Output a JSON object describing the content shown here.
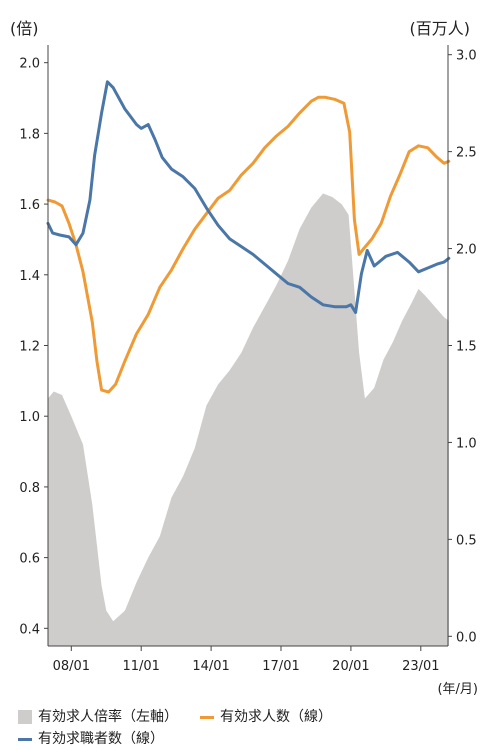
{
  "chart_data": {
    "type": "line",
    "left_unit": "(倍)",
    "right_unit": "(百万人)",
    "x_unit": "(年/月)",
    "x_ticks": [
      "08/01",
      "11/01",
      "14/01",
      "17/01",
      "20/01",
      "23/01"
    ],
    "x_range": [
      "2007/01",
      "2024/03"
    ],
    "y_left": {
      "min": 0.35,
      "max": 2.05,
      "ticks": [
        "0.4",
        "0.6",
        "0.8",
        "1.0",
        "1.2",
        "1.4",
        "1.6",
        "1.8",
        "2.0"
      ]
    },
    "y_right": {
      "min": -0.05,
      "max": 3.05,
      "ticks": [
        "0.0",
        "0.5",
        "1.0",
        "1.5",
        "2.0",
        "2.5",
        "3.0"
      ]
    },
    "series": [
      {
        "name": "有効求人倍率（左軸）",
        "kind": "area",
        "axis": "left",
        "color": "#cfcdcb",
        "x": [
          2007.0,
          2007.25,
          2007.6,
          2008.0,
          2008.5,
          2008.9,
          2009.3,
          2009.5,
          2009.8,
          2010.3,
          2010.8,
          2011.3,
          2011.8,
          2012.3,
          2012.8,
          2013.3,
          2013.8,
          2014.3,
          2014.8,
          2015.3,
          2015.8,
          2016.3,
          2016.8,
          2017.3,
          2017.8,
          2018.3,
          2018.8,
          2019.2,
          2019.6,
          2019.9,
          2020.1,
          2020.35,
          2020.6,
          2021.0,
          2021.4,
          2021.8,
          2022.2,
          2022.6,
          2022.9,
          2023.2,
          2023.6,
          2024.0,
          2024.2
        ],
        "y": [
          1.05,
          1.07,
          1.06,
          1.0,
          0.92,
          0.75,
          0.52,
          0.45,
          0.42,
          0.45,
          0.53,
          0.6,
          0.66,
          0.77,
          0.83,
          0.91,
          1.03,
          1.09,
          1.13,
          1.18,
          1.25,
          1.31,
          1.37,
          1.44,
          1.53,
          1.59,
          1.63,
          1.62,
          1.6,
          1.57,
          1.4,
          1.18,
          1.05,
          1.08,
          1.16,
          1.21,
          1.27,
          1.32,
          1.36,
          1.34,
          1.31,
          1.28,
          1.27
        ]
      },
      {
        "name": "有効求人数（線）",
        "kind": "line",
        "axis": "right",
        "color": "#ef9a34",
        "x": [
          2007.0,
          2007.3,
          2007.6,
          2007.9,
          2008.2,
          2008.5,
          2008.9,
          2009.1,
          2009.3,
          2009.6,
          2009.9,
          2010.3,
          2010.8,
          2011.3,
          2011.8,
          2012.3,
          2012.8,
          2013.3,
          2013.8,
          2014.3,
          2014.8,
          2015.3,
          2015.8,
          2016.3,
          2016.8,
          2017.3,
          2017.8,
          2018.3,
          2018.6,
          2018.9,
          2019.3,
          2019.7,
          2019.95,
          2020.15,
          2020.35,
          2020.55,
          2020.9,
          2021.3,
          2021.7,
          2022.1,
          2022.5,
          2022.9,
          2023.3,
          2023.7,
          2024.0,
          2024.2
        ],
        "y": [
          2.25,
          2.24,
          2.22,
          2.13,
          2.02,
          1.88,
          1.62,
          1.42,
          1.27,
          1.26,
          1.3,
          1.42,
          1.56,
          1.66,
          1.8,
          1.89,
          2.0,
          2.1,
          2.18,
          2.26,
          2.3,
          2.38,
          2.44,
          2.52,
          2.58,
          2.63,
          2.7,
          2.76,
          2.78,
          2.78,
          2.77,
          2.75,
          2.6,
          2.15,
          1.97,
          2.0,
          2.05,
          2.13,
          2.27,
          2.38,
          2.5,
          2.53,
          2.52,
          2.47,
          2.44,
          2.45
        ]
      },
      {
        "name": "有効求職者数（線）",
        "kind": "line",
        "axis": "right",
        "color": "#4a76a8",
        "x": [
          2007.0,
          2007.2,
          2007.5,
          2007.9,
          2008.2,
          2008.5,
          2008.8,
          2009.0,
          2009.3,
          2009.55,
          2009.8,
          2010.3,
          2010.8,
          2011.0,
          2011.3,
          2011.6,
          2011.9,
          2012.3,
          2012.8,
          2013.3,
          2013.8,
          2014.3,
          2014.8,
          2015.3,
          2015.8,
          2016.3,
          2016.8,
          2017.3,
          2017.8,
          2018.3,
          2018.8,
          2019.3,
          2019.8,
          2020.0,
          2020.2,
          2020.45,
          2020.7,
          2021.0,
          2021.5,
          2022.0,
          2022.5,
          2022.9,
          2023.3,
          2023.7,
          2024.0,
          2024.2
        ],
        "y": [
          2.13,
          2.08,
          2.07,
          2.06,
          2.02,
          2.08,
          2.25,
          2.48,
          2.7,
          2.86,
          2.83,
          2.72,
          2.64,
          2.62,
          2.64,
          2.56,
          2.47,
          2.41,
          2.37,
          2.31,
          2.21,
          2.12,
          2.05,
          2.01,
          1.97,
          1.92,
          1.87,
          1.82,
          1.8,
          1.75,
          1.71,
          1.7,
          1.7,
          1.71,
          1.67,
          1.87,
          1.99,
          1.91,
          1.96,
          1.98,
          1.93,
          1.88,
          1.9,
          1.92,
          1.93,
          1.95
        ]
      }
    ],
    "grid": false,
    "legend_position": "bottom"
  }
}
